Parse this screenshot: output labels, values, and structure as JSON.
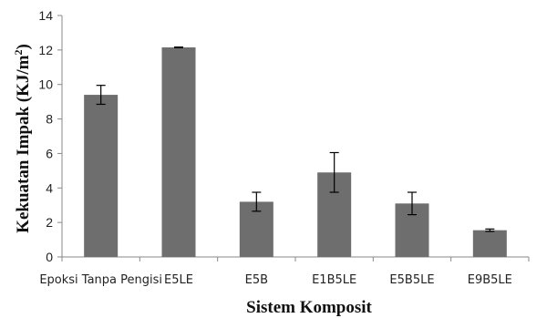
{
  "chart_data": {
    "type": "bar",
    "title": "",
    "xlabel": "Sistem Komposit",
    "ylabel": "Kekuatan Impak (KJ/m²)",
    "ylabel_parts": {
      "main": "Kekuatan Impak (KJ/m",
      "sup": "2",
      "tail": ")"
    },
    "ylim": [
      0,
      14
    ],
    "yticks": [
      0,
      2,
      4,
      6,
      8,
      10,
      12,
      14
    ],
    "categories": [
      "Epoksi Tanpa Pengisi",
      "E5LE",
      "E5B",
      "E1B5LE",
      "E5B5LE",
      "E9B5LE"
    ],
    "values": [
      9.4,
      12.15,
      3.2,
      4.9,
      3.1,
      1.55
    ],
    "error": [
      0.55,
      0.02,
      0.55,
      1.15,
      0.65,
      0.07
    ],
    "bar_color": "#6e6e6e",
    "grid": false,
    "legend": "none"
  }
}
